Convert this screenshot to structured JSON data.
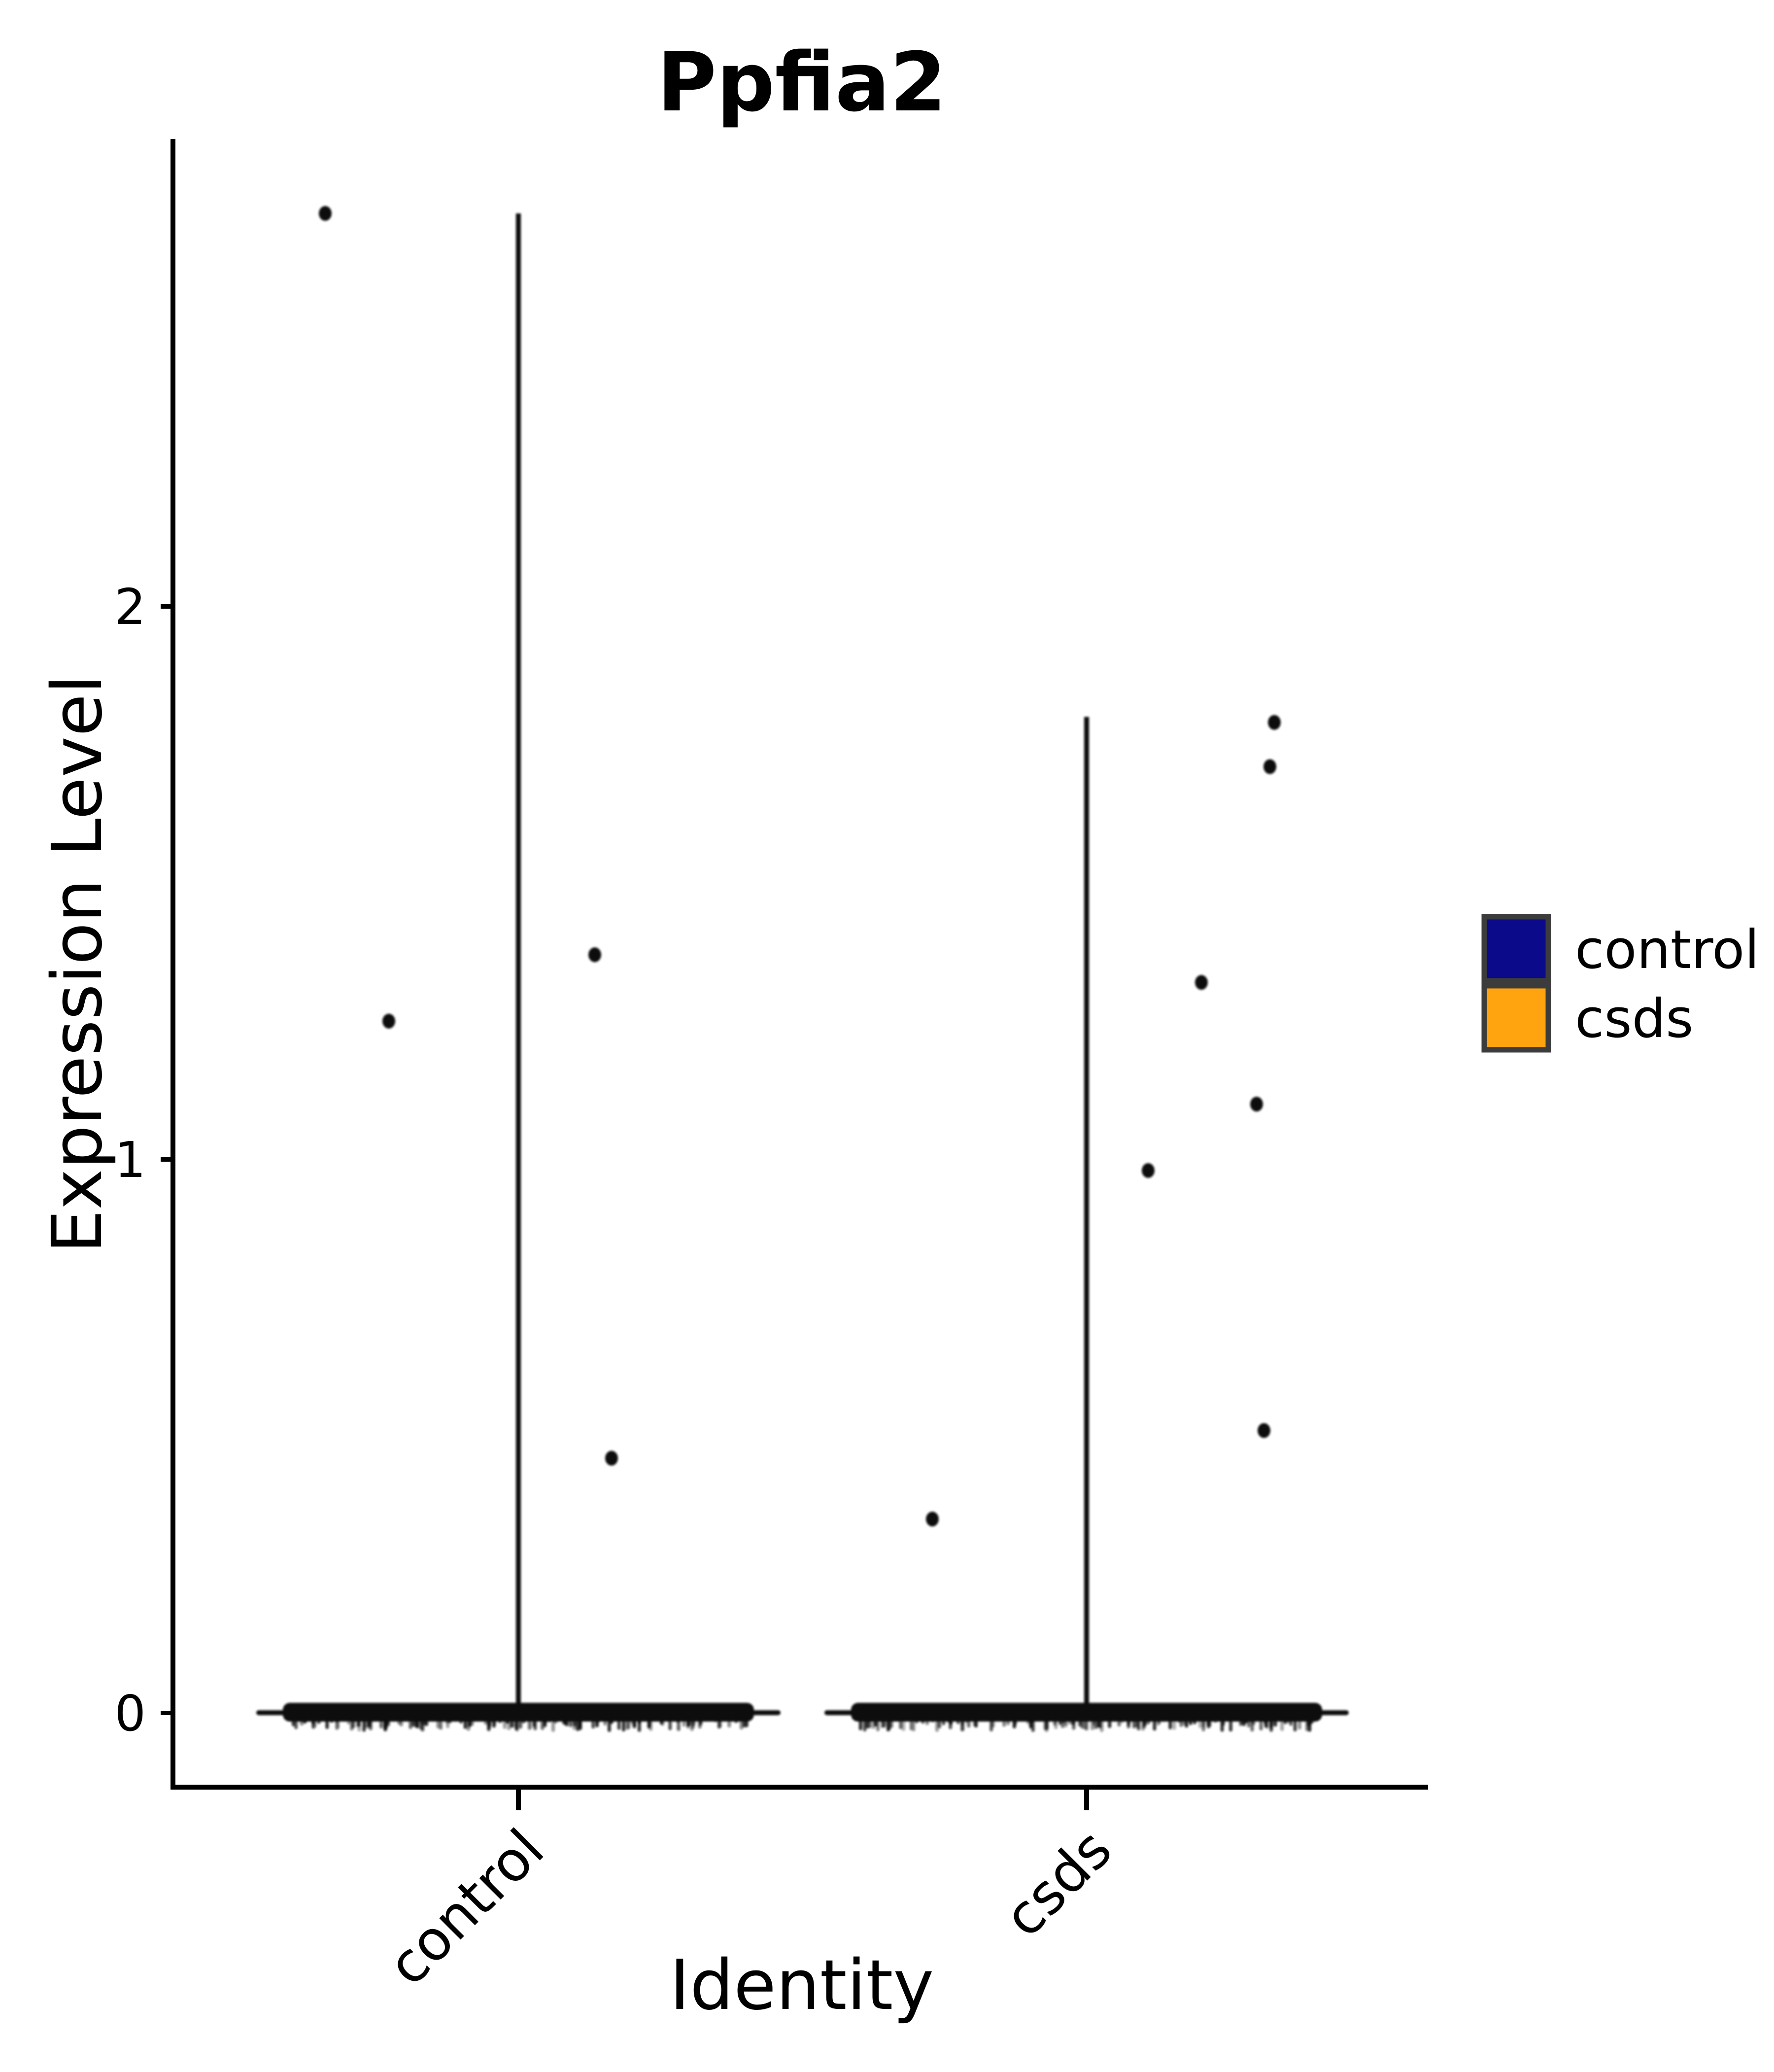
{
  "title": "Ppfia2",
  "axes": {
    "x_title": "Identity",
    "y_title": "Expression Level"
  },
  "legend": {
    "border_color": "#3C3C3C",
    "items": [
      {
        "label": "control",
        "color": "#0A0A8A"
      },
      {
        "label": "csds",
        "color": "#FFA40E"
      }
    ]
  },
  "chart_data": {
    "type": "violin",
    "title": "Ppfia2",
    "xlabel": "Identity",
    "ylabel": "Expression Level",
    "categories": [
      "control",
      "csds"
    ],
    "y_ticks": [
      0,
      1,
      2
    ],
    "y_tick_labels": [
      "0",
      "1",
      "2"
    ],
    "ylim": [
      -0.15,
      2.95
    ],
    "legend_position": "right",
    "grid": false,
    "mark_color": "#111111",
    "series": [
      {
        "name": "control",
        "violin_line_max": 2.71,
        "violin_line_min": 0,
        "dense_cluster_at_zero": true,
        "nonzero_points": [
          {
            "value": 2.71,
            "jitter_dx": -392
          },
          {
            "value": 1.25,
            "jitter_dx": -263
          },
          {
            "value": 1.37,
            "jitter_dx": 155
          },
          {
            "value": 0.46,
            "jitter_dx": 189
          }
        ]
      },
      {
        "name": "csds",
        "violin_line_max": 1.8,
        "violin_line_min": 0,
        "dense_cluster_at_zero": true,
        "nonzero_points": [
          {
            "value": 0.35,
            "jitter_dx": -313
          },
          {
            "value": 0.98,
            "jitter_dx": 125
          },
          {
            "value": 1.32,
            "jitter_dx": 233
          },
          {
            "value": 1.1,
            "jitter_dx": 345
          },
          {
            "value": 1.71,
            "jitter_dx": 372
          },
          {
            "value": 1.79,
            "jitter_dx": 381
          },
          {
            "value": 0.51,
            "jitter_dx": 360
          }
        ]
      }
    ]
  }
}
